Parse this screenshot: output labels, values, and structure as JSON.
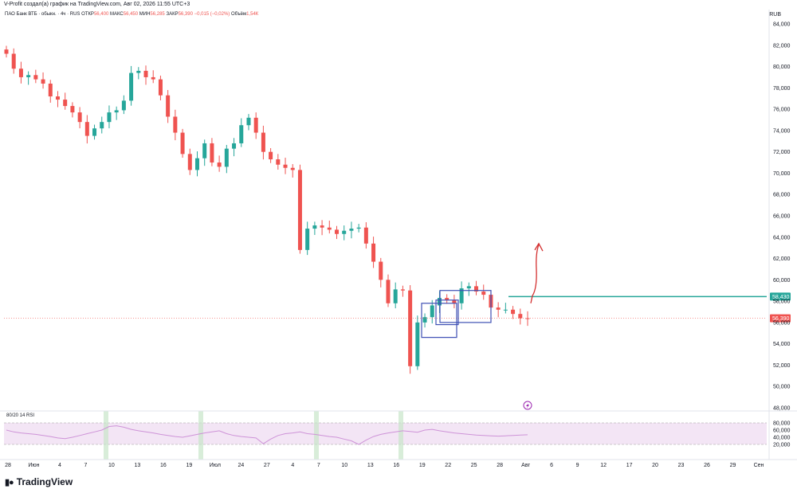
{
  "caption": "V-Profit создал(а) график на TradingView.com, Авг 02, 2026 11:55 UTC+3",
  "symbol": {
    "name": "ПАО Банк ВТБ · обыкн. · 4ч · RUS",
    "open_label": "ОТКР",
    "open": "56,400",
    "high_label": "МАКС",
    "high": "56,450",
    "low_label": "МИН",
    "low": "56,285",
    "close_label": "ЗАКР",
    "close": "56,390",
    "change": "−0,015 (−0,02%)",
    "volume_label": "Объём",
    "volume": "1,54К"
  },
  "currency": "RUB",
  "rsi_title": "80/20 14 RSI",
  "brand": "TradingView",
  "colors": {
    "up": "#26a69a",
    "down": "#ef5350",
    "level": "#26a69a",
    "box": "#3f51b5",
    "arrow": "#d32f2f",
    "rsi_band": "#f3e5f5",
    "rsi_line": "#ce93d8"
  },
  "icons": [
    "lightning-icon"
  ],
  "chart_data": {
    "type": "candlestick",
    "title": "",
    "ylim": [
      48000,
      84000
    ],
    "y_ticks": [
      "84,000",
      "82,000",
      "80,000",
      "78,000",
      "76,000",
      "74,000",
      "72,000",
      "70,000",
      "68,000",
      "66,000",
      "64,000",
      "62,000",
      "60,000",
      "58,000",
      "56,000",
      "54,000",
      "52,000",
      "50,000",
      "48,000"
    ],
    "x_ticks": [
      "28",
      "Июн",
      "4",
      "7",
      "10",
      "13",
      "16",
      "19",
      "Июл",
      "24",
      "27",
      "4",
      "7",
      "10",
      "13",
      "16",
      "19",
      "22",
      "25",
      "28",
      "Авг",
      "6",
      "9",
      "12",
      "17",
      "20",
      "23",
      "26",
      "29",
      "Сен"
    ],
    "last_price": "56,390",
    "level_price": "58,430",
    "level_value": 58430,
    "close_path": [
      81200,
      79800,
      79000,
      79200,
      78800,
      78400,
      77200,
      76900,
      76300,
      75700,
      74800,
      73500,
      74200,
      74800,
      75700,
      75900,
      76800,
      79400,
      79600,
      79000,
      78800,
      77300,
      75300,
      73800,
      71800,
      70300,
      71400,
      72800,
      71000,
      70600,
      72300,
      72800,
      74500,
      75200,
      73800,
      72000,
      71300,
      70800,
      70500,
      70300,
      62800,
      64800,
      65100,
      64900,
      64700,
      64300,
      64600,
      64800,
      64900,
      63400,
      61700,
      60000,
      57800,
      59100,
      59000,
      51900,
      56000,
      56500,
      57600,
      58300,
      58100,
      57800,
      59200,
      59400,
      58900,
      58600,
      57400,
      57200,
      57200,
      56800,
      56400,
      56390
    ],
    "rsi": {
      "upper": 80,
      "lower": 20,
      "y_ticks": [
        "80,000",
        "60,000",
        "40,000",
        "20,000"
      ],
      "values": [
        60,
        55,
        52,
        50,
        48,
        45,
        42,
        38,
        36,
        40,
        45,
        50,
        55,
        60,
        70,
        72,
        68,
        62,
        58,
        55,
        52,
        48,
        45,
        42,
        40,
        44,
        48,
        52,
        55,
        58,
        50,
        45,
        42,
        40,
        38,
        22,
        35,
        45,
        50,
        52,
        55,
        50,
        48,
        45,
        42,
        40,
        35,
        30,
        20,
        32,
        42,
        48,
        52,
        55,
        58,
        56,
        54,
        60,
        62,
        58,
        55,
        52,
        50,
        48,
        46,
        45,
        44,
        43,
        44,
        45,
        46,
        47
      ]
    },
    "annotations": {
      "boxes": 3,
      "arrow": "up"
    }
  }
}
